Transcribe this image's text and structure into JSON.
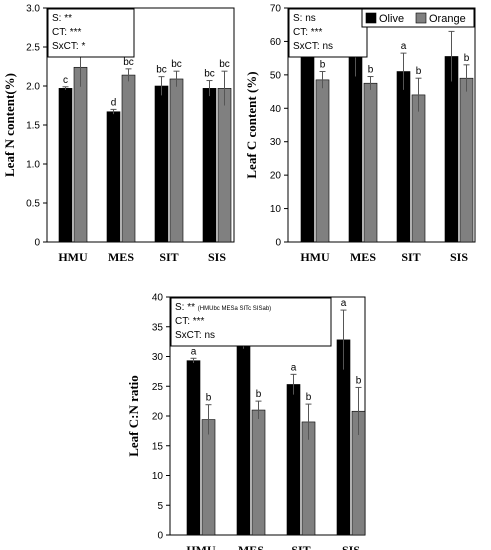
{
  "chart_data": [
    {
      "id": "n",
      "type": "bar",
      "ylabel": "Leaf N content(%)",
      "ylim": [
        0,
        3
      ],
      "yticks": [
        "0",
        "0.5",
        "1.0",
        "1.5",
        "2.0",
        "2.5",
        "3.0"
      ],
      "ytick_values": [
        0,
        0.5,
        1.0,
        1.5,
        2.0,
        2.5,
        3.0
      ],
      "categories": [
        "HMU",
        "MES",
        "SIT",
        "SIS"
      ],
      "legend": false,
      "stats": [
        {
          "text": "S: **",
          "sup": ""
        },
        {
          "text": "CT: ***",
          "sup": ""
        },
        {
          "text": "SxCT: *",
          "sup": ""
        }
      ],
      "series": [
        {
          "name": "Olive",
          "color": "#000000",
          "values": [
            1.97,
            1.67,
            2.0,
            1.97
          ],
          "errors": [
            0.02,
            0.03,
            0.12,
            0.1
          ],
          "letters": [
            "c",
            "d",
            "bc",
            "bc"
          ]
        },
        {
          "name": "Orange",
          "color": "#808080",
          "values": [
            2.24,
            2.14,
            2.09,
            1.97
          ],
          "errors": [
            0.25,
            0.08,
            0.1,
            0.22
          ],
          "letters": [
            "a",
            "bc",
            "bc",
            "bc"
          ]
        }
      ]
    },
    {
      "id": "c",
      "type": "bar",
      "ylabel": "Leaf C content (%)",
      "ylim": [
        0,
        70
      ],
      "yticks": [
        "0",
        "10",
        "20",
        "30",
        "40",
        "50",
        "60",
        "70"
      ],
      "ytick_values": [
        0,
        10,
        20,
        30,
        40,
        50,
        60,
        70
      ],
      "categories": [
        "HMU",
        "MES",
        "SIT",
        "SIS"
      ],
      "legend": true,
      "stats": [
        {
          "text": "S: ns",
          "sup": ""
        },
        {
          "text": "CT: ***",
          "sup": ""
        },
        {
          "text": "SxCT: ns",
          "sup": ""
        }
      ],
      "series": [
        {
          "name": "Olive",
          "color": "#000000",
          "values": [
            58,
            56.5,
            51,
            55.5
          ],
          "errors": [
            1.0,
            7.0,
            5.5,
            7.5
          ],
          "letters": [
            "a",
            "a",
            "a",
            "a"
          ]
        },
        {
          "name": "Orange",
          "color": "#808080",
          "values": [
            48.5,
            47.5,
            44,
            49
          ],
          "errors": [
            2.5,
            2.0,
            5.0,
            4.0
          ],
          "letters": [
            "b",
            "b",
            "b",
            "b"
          ]
        }
      ]
    },
    {
      "id": "cn",
      "type": "bar",
      "ylabel": "Leaf C:N ratio",
      "ylim": [
        0,
        40
      ],
      "yticks": [
        "0",
        "5",
        "10",
        "15",
        "20",
        "25",
        "30",
        "35",
        "40"
      ],
      "ytick_values": [
        0,
        5,
        10,
        15,
        20,
        25,
        30,
        35,
        40
      ],
      "categories": [
        "HMU",
        "MES",
        "SIT",
        "SIS"
      ],
      "legend": false,
      "stats": [
        {
          "text": "S: ** ",
          "sup": "(HMUbc MESa SITc SISab)"
        },
        {
          "text": "CT: ***",
          "sup": ""
        },
        {
          "text": "SxCT: ns",
          "sup": ""
        }
      ],
      "series": [
        {
          "name": "Olive",
          "color": "#000000",
          "values": [
            29.3,
            34.5,
            25.3,
            32.8
          ],
          "errors": [
            0.4,
            3.2,
            1.7,
            5.0
          ],
          "letters": [
            "a",
            "a",
            "a",
            "a"
          ]
        },
        {
          "name": "Orange",
          "color": "#808080",
          "values": [
            19.4,
            21.0,
            19.0,
            20.8
          ],
          "errors": [
            2.5,
            1.5,
            3.0,
            4.0
          ],
          "letters": [
            "b",
            "b",
            "b",
            "b"
          ]
        }
      ]
    }
  ]
}
